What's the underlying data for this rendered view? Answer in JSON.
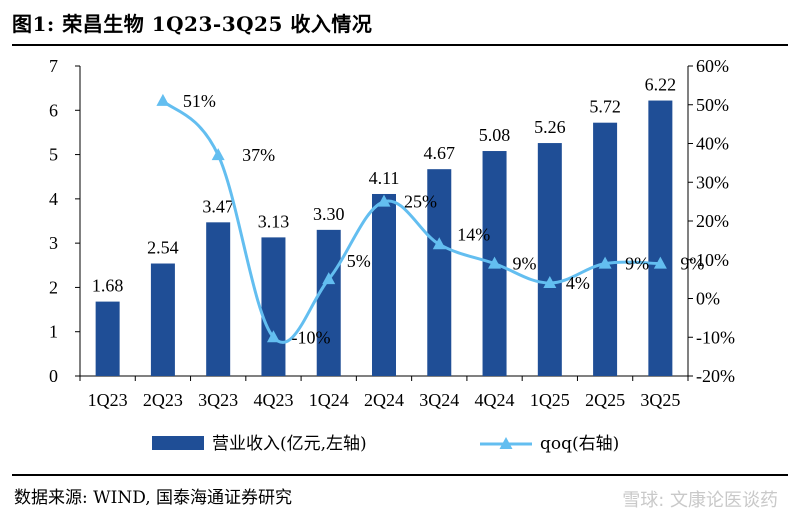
{
  "figure": {
    "title": "图1:  荣昌生物 1Q23-3Q25 收入情况",
    "source": "数据来源: WIND, 国泰海通证券研究",
    "watermark": "雪球: 文康论医谈药"
  },
  "chart_data": {
    "type": "bar+line",
    "categories": [
      "1Q23",
      "2Q23",
      "3Q23",
      "4Q23",
      "1Q24",
      "2Q24",
      "3Q24",
      "4Q24",
      "1Q25",
      "2Q25",
      "3Q25"
    ],
    "series": [
      {
        "name": "营业收入(亿元,左轴)",
        "type": "bar",
        "axis": "left",
        "values": [
          1.68,
          2.54,
          3.47,
          3.13,
          3.3,
          4.11,
          4.67,
          5.08,
          5.26,
          5.72,
          6.22
        ],
        "labels": [
          "1.68",
          "2.54",
          "3.47",
          "3.13",
          "3.30",
          "4.11",
          "4.67",
          "5.08",
          "5.26",
          "5.72",
          "6.22"
        ],
        "color": "#1f4e96"
      },
      {
        "name": "qoq(右轴)",
        "type": "line",
        "axis": "right",
        "values": [
          null,
          51,
          37,
          -10,
          5,
          25,
          14,
          9,
          4,
          9,
          9
        ],
        "labels": [
          "",
          "51%",
          "37%",
          "-10%",
          "5%",
          "25%",
          "14%",
          "9%",
          "4%",
          "9%",
          "9%"
        ],
        "color": "#63bef0"
      }
    ],
    "left_axis": {
      "ylim": [
        0,
        7
      ],
      "ticks": [
        "0",
        "1",
        "2",
        "3",
        "4",
        "5",
        "6",
        "7"
      ]
    },
    "right_axis": {
      "ylim": [
        -20,
        60
      ],
      "ticks": [
        "-20%",
        "-10%",
        "0%",
        "10%",
        "20%",
        "30%",
        "40%",
        "50%",
        "60%"
      ]
    },
    "legend": {
      "position": "bottom",
      "items": [
        "营业收入(亿元,左轴)",
        "qoq(右轴)"
      ]
    },
    "grid": false
  }
}
